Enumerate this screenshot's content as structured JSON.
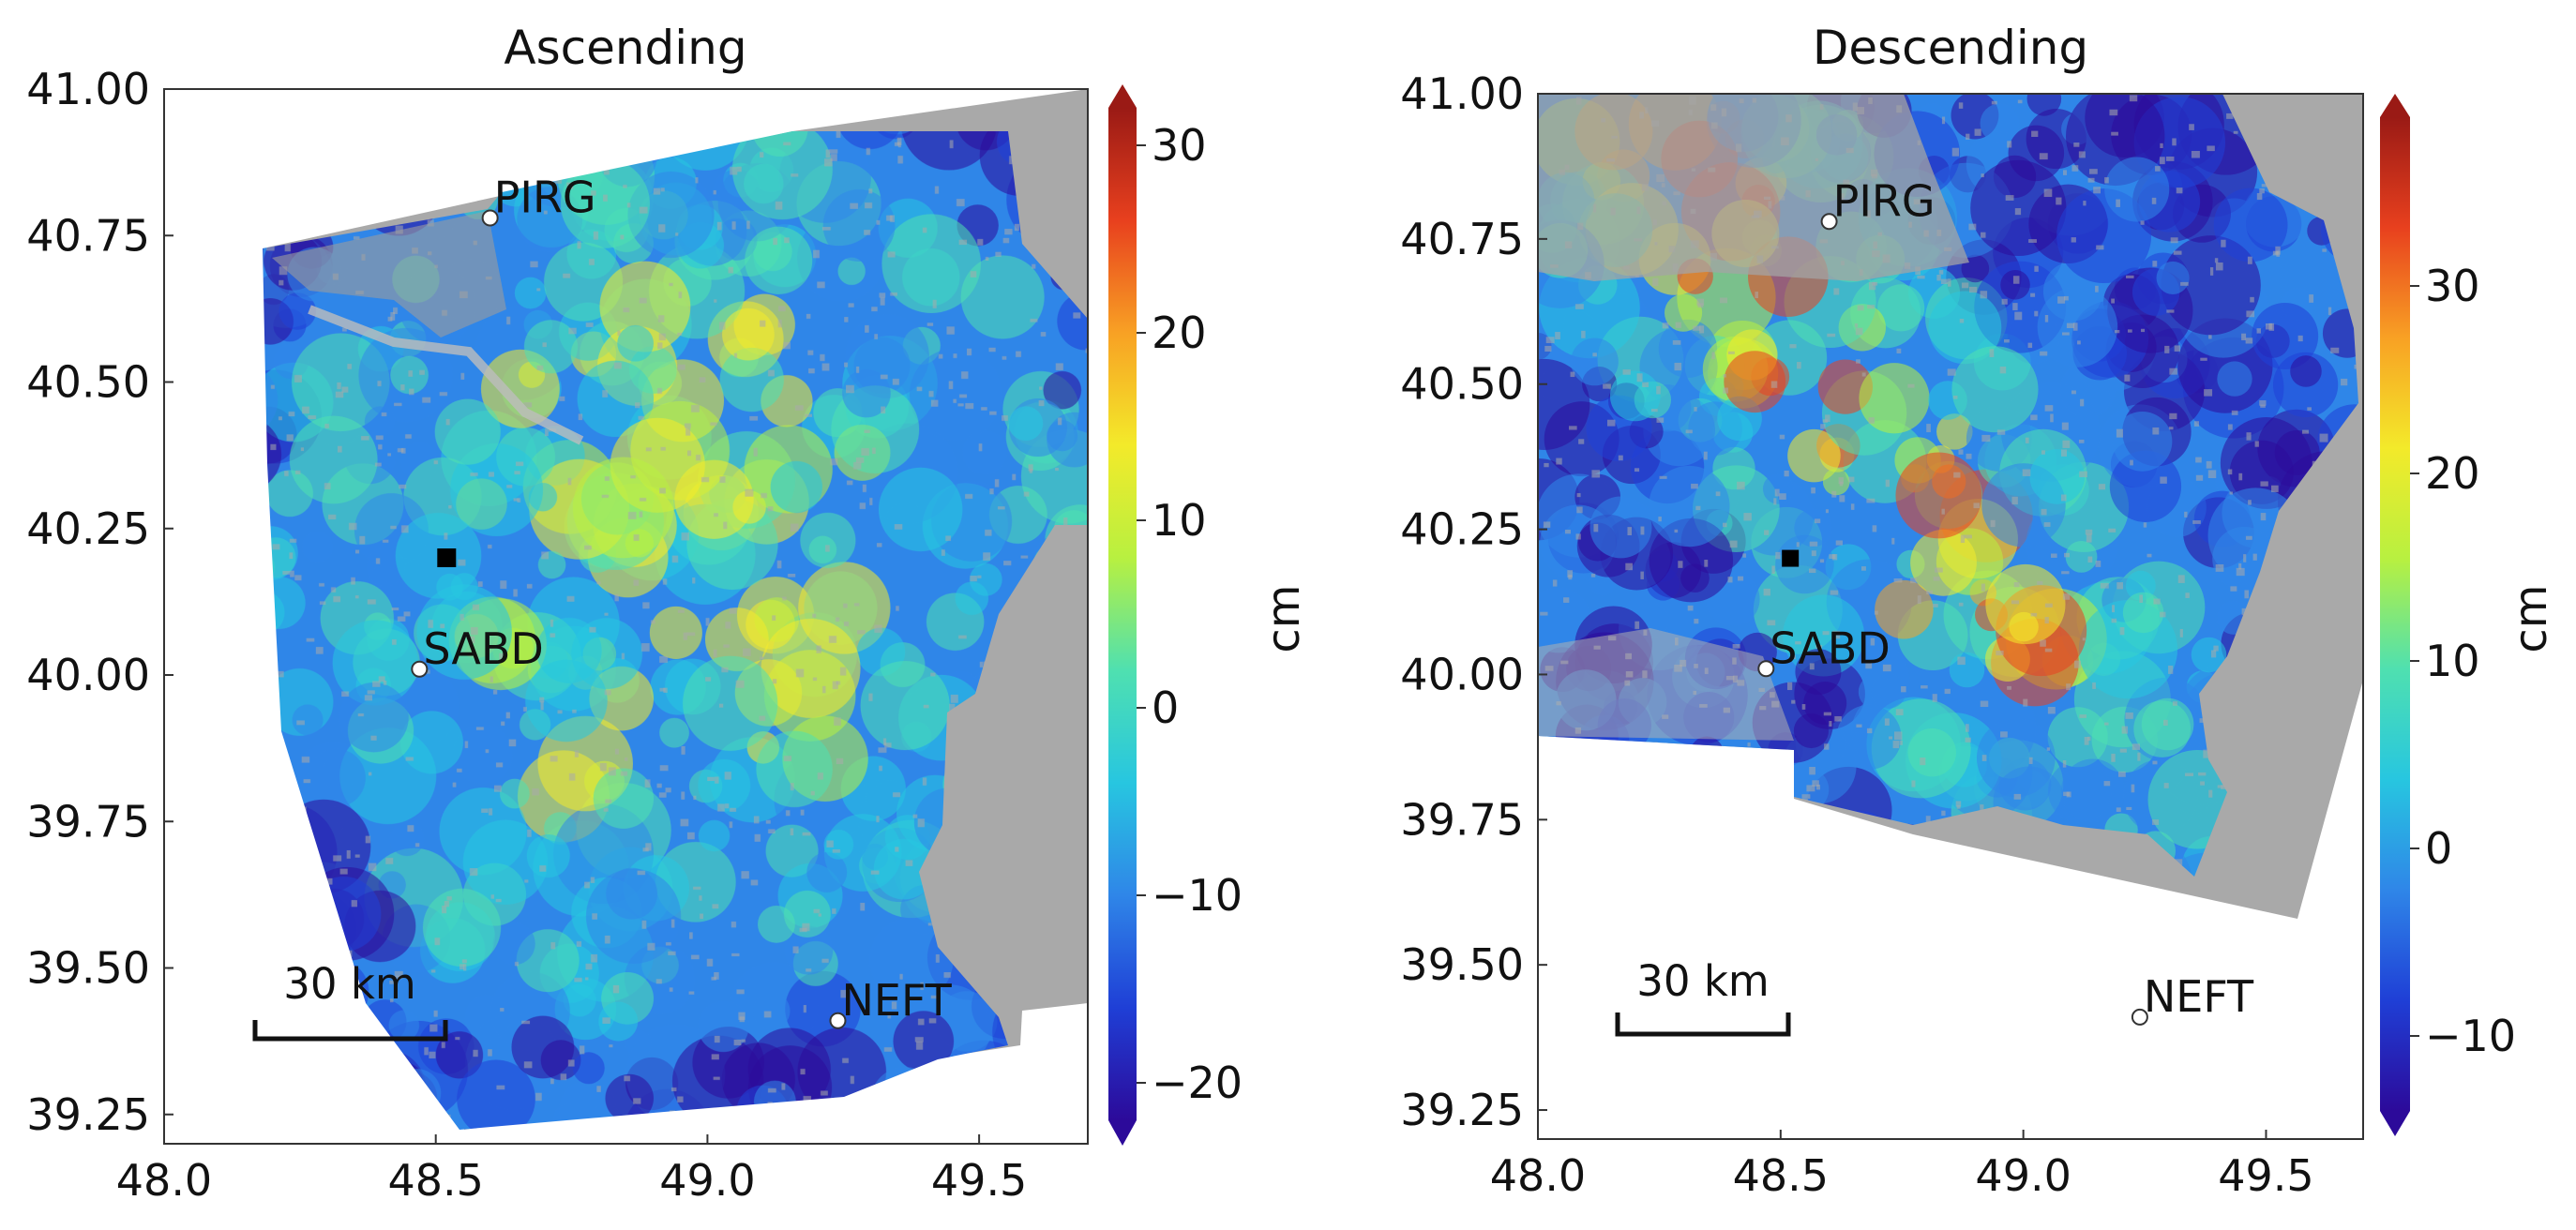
{
  "chart_data": [
    {
      "type": "heatmap",
      "title": "Ascending",
      "xlim": [
        48.0,
        49.7
      ],
      "ylim": [
        39.2,
        41.0
      ],
      "xticks": [
        48.0,
        48.5,
        49.0,
        49.5
      ],
      "xtick_labels": [
        "48.0",
        "48.5",
        "49.0",
        "49.5"
      ],
      "yticks": [
        39.25,
        39.5,
        39.75,
        40.0,
        40.25,
        40.5,
        40.75,
        41.0
      ],
      "ytick_labels": [
        "39.25",
        "39.50",
        "39.75",
        "40.00",
        "40.25",
        "40.50",
        "40.75",
        "41.00"
      ],
      "colorbar": {
        "label": "cm",
        "min": -22,
        "max": 32,
        "ticks": [
          -20,
          -10,
          0,
          10,
          20,
          30
        ],
        "tick_labels": [
          "−20",
          "−10",
          "0",
          "10",
          "20",
          "30"
        ],
        "colormap": [
          "#2c0a9a",
          "#1f3fd6",
          "#2f86e8",
          "#27c6e0",
          "#4fe0b0",
          "#b8f040",
          "#f3ea2a",
          "#f8a124",
          "#e8401e",
          "#9a1a15"
        ]
      },
      "stations": [
        {
          "name": "PIRG",
          "x": 48.6,
          "y": 40.78
        },
        {
          "name": "SABD",
          "x": 48.47,
          "y": 40.01
        },
        {
          "name": "NEFT",
          "x": 49.24,
          "y": 39.41
        }
      ],
      "marker": {
        "x": 48.52,
        "y": 40.2
      },
      "scalebar_label": "30 km",
      "no_data_color": "#a9a9a9"
    },
    {
      "type": "heatmap",
      "title": "Descending",
      "xlim": [
        48.0,
        49.7
      ],
      "ylim": [
        39.2,
        41.0
      ],
      "xticks": [
        48.0,
        48.5,
        49.0,
        49.5
      ],
      "xtick_labels": [
        "48.0",
        "48.5",
        "49.0",
        "49.5"
      ],
      "yticks": [
        39.25,
        39.5,
        39.75,
        40.0,
        40.25,
        40.5,
        40.75,
        41.0
      ],
      "ytick_labels": [
        "39.25",
        "39.50",
        "39.75",
        "40.00",
        "40.25",
        "40.50",
        "40.75",
        "41.00"
      ],
      "colorbar": {
        "label": "cm",
        "min": -14,
        "max": 39,
        "ticks": [
          -10,
          0,
          10,
          20,
          30
        ],
        "tick_labels": [
          "−10",
          "0",
          "10",
          "20",
          "30"
        ],
        "colormap": [
          "#2c0a9a",
          "#1f3fd6",
          "#2f86e8",
          "#27c6e0",
          "#4fe0b0",
          "#b8f040",
          "#f3ea2a",
          "#f8a124",
          "#e8401e",
          "#9a1a15"
        ]
      },
      "stations": [
        {
          "name": "PIRG",
          "x": 48.6,
          "y": 40.78
        },
        {
          "name": "SABD",
          "x": 48.47,
          "y": 40.01
        },
        {
          "name": "NEFT",
          "x": 49.24,
          "y": 39.41
        }
      ],
      "marker": {
        "x": 48.52,
        "y": 40.2
      },
      "scalebar_label": "30 km",
      "no_data_color": "#a9a9a9"
    }
  ]
}
